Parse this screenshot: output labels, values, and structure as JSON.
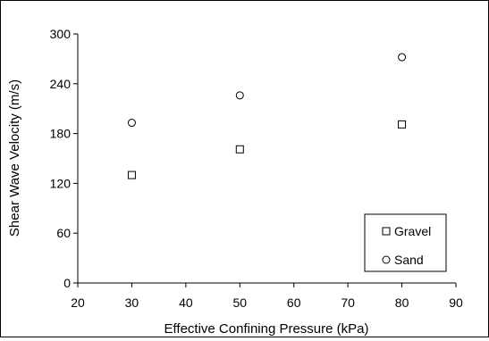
{
  "chart_data": {
    "type": "scatter",
    "title": "",
    "xlabel": "Effective Confining Pressure (kPa)",
    "ylabel": "Shear Wave Velocity (m/s)",
    "xlim": [
      20,
      90
    ],
    "ylim": [
      0,
      300
    ],
    "xticks": [
      20,
      30,
      40,
      50,
      60,
      70,
      80,
      90
    ],
    "yticks": [
      0,
      60,
      120,
      180,
      240,
      300
    ],
    "grid": false,
    "legend_position": "bottom-right",
    "series": [
      {
        "name": "Gravel",
        "marker": "square",
        "x": [
          30,
          50,
          80
        ],
        "y": [
          130,
          161,
          191
        ]
      },
      {
        "name": "Sand",
        "marker": "circle",
        "x": [
          30,
          50,
          80
        ],
        "y": [
          193,
          226,
          272
        ]
      }
    ]
  }
}
